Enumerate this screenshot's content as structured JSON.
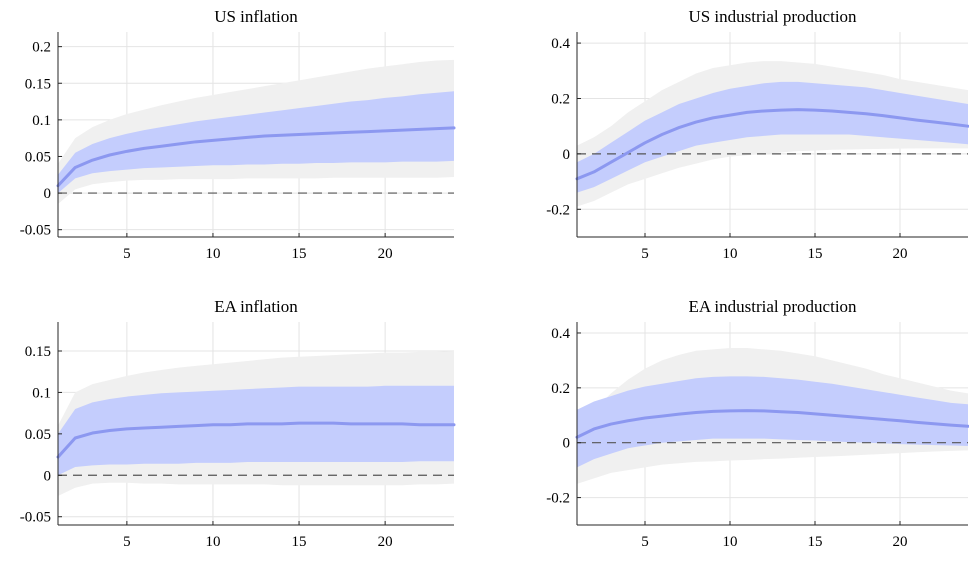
{
  "colors": {
    "outer_band": "#f0f0f0",
    "inner_band": "#c4cdfd",
    "median_line": "#8c98f0",
    "zero_line": "#555555"
  },
  "chart_data": [
    {
      "type": "area",
      "title": "US inflation",
      "xlim": [
        1,
        24
      ],
      "ylim": [
        -0.06,
        0.22
      ],
      "xticks": [
        5,
        10,
        15,
        20
      ],
      "yticks": [
        -0.05,
        0,
        0.05,
        0.1,
        0.15,
        0.2
      ],
      "ytick_labels": [
        "-0.05",
        "0",
        "0.05",
        "0.1",
        "0.15",
        "0.2"
      ],
      "grid": true,
      "zero_line": true,
      "x": [
        1,
        2,
        3,
        4,
        5,
        6,
        7,
        8,
        9,
        10,
        11,
        12,
        13,
        14,
        15,
        16,
        17,
        18,
        19,
        20,
        21,
        22,
        23,
        24
      ],
      "series": [
        {
          "role": "outer_band",
          "lower": [
            -0.015,
            0.005,
            0.012,
            0.015,
            0.017,
            0.018,
            0.018,
            0.019,
            0.019,
            0.019,
            0.019,
            0.02,
            0.02,
            0.02,
            0.02,
            0.02,
            0.021,
            0.021,
            0.021,
            0.021,
            0.021,
            0.021,
            0.021,
            0.022
          ],
          "upper": [
            0.04,
            0.075,
            0.09,
            0.1,
            0.108,
            0.114,
            0.12,
            0.125,
            0.13,
            0.134,
            0.138,
            0.142,
            0.146,
            0.15,
            0.154,
            0.158,
            0.162,
            0.166,
            0.17,
            0.173,
            0.176,
            0.179,
            0.181,
            0.182
          ]
        },
        {
          "role": "inner_band",
          "lower": [
            0.0,
            0.02,
            0.027,
            0.03,
            0.032,
            0.034,
            0.035,
            0.036,
            0.037,
            0.038,
            0.038,
            0.039,
            0.039,
            0.04,
            0.04,
            0.041,
            0.041,
            0.042,
            0.042,
            0.042,
            0.043,
            0.043,
            0.043,
            0.044
          ],
          "upper": [
            0.025,
            0.055,
            0.067,
            0.075,
            0.081,
            0.086,
            0.09,
            0.094,
            0.098,
            0.101,
            0.104,
            0.107,
            0.11,
            0.113,
            0.116,
            0.119,
            0.122,
            0.125,
            0.127,
            0.13,
            0.132,
            0.135,
            0.137,
            0.139
          ]
        },
        {
          "role": "median",
          "values": [
            0.01,
            0.035,
            0.045,
            0.052,
            0.057,
            0.061,
            0.064,
            0.067,
            0.07,
            0.072,
            0.074,
            0.076,
            0.078,
            0.079,
            0.08,
            0.081,
            0.082,
            0.083,
            0.084,
            0.085,
            0.086,
            0.087,
            0.088,
            0.089
          ]
        }
      ]
    },
    {
      "type": "area",
      "title": "US industrial production",
      "xlim": [
        1,
        24
      ],
      "ylim": [
        -0.3,
        0.44
      ],
      "xticks": [
        5,
        10,
        15,
        20
      ],
      "yticks": [
        -0.2,
        0,
        0.2,
        0.4
      ],
      "ytick_labels": [
        "-0.2",
        "0",
        "0.2",
        "0.4"
      ],
      "grid": true,
      "zero_line": true,
      "x": [
        1,
        2,
        3,
        4,
        5,
        6,
        7,
        8,
        9,
        10,
        11,
        12,
        13,
        14,
        15,
        16,
        17,
        18,
        19,
        20,
        21,
        22,
        23,
        24
      ],
      "series": [
        {
          "role": "outer_band",
          "lower": [
            -0.19,
            -0.17,
            -0.14,
            -0.11,
            -0.09,
            -0.07,
            -0.05,
            -0.035,
            -0.02,
            -0.01,
            -0.005,
            0.0,
            0.005,
            0.01,
            0.012,
            0.015,
            0.016,
            0.017,
            0.018,
            0.019,
            0.02,
            0.02,
            0.02,
            0.02
          ],
          "upper": [
            0.03,
            0.06,
            0.1,
            0.15,
            0.19,
            0.23,
            0.26,
            0.29,
            0.31,
            0.32,
            0.33,
            0.335,
            0.335,
            0.33,
            0.325,
            0.315,
            0.305,
            0.295,
            0.285,
            0.27,
            0.26,
            0.25,
            0.24,
            0.23
          ]
        },
        {
          "role": "inner_band",
          "lower": [
            -0.14,
            -0.12,
            -0.09,
            -0.06,
            -0.03,
            -0.01,
            0.01,
            0.03,
            0.04,
            0.05,
            0.06,
            0.065,
            0.07,
            0.07,
            0.07,
            0.07,
            0.07,
            0.065,
            0.06,
            0.055,
            0.05,
            0.045,
            0.04,
            0.035
          ],
          "upper": [
            -0.03,
            0.0,
            0.04,
            0.08,
            0.12,
            0.15,
            0.18,
            0.2,
            0.22,
            0.235,
            0.245,
            0.255,
            0.26,
            0.26,
            0.255,
            0.25,
            0.245,
            0.24,
            0.23,
            0.22,
            0.21,
            0.2,
            0.19,
            0.18
          ]
        },
        {
          "role": "median",
          "values": [
            -0.09,
            -0.065,
            -0.03,
            0.005,
            0.04,
            0.07,
            0.095,
            0.115,
            0.13,
            0.14,
            0.15,
            0.155,
            0.158,
            0.16,
            0.158,
            0.155,
            0.15,
            0.145,
            0.138,
            0.13,
            0.122,
            0.115,
            0.108,
            0.1
          ]
        }
      ]
    },
    {
      "type": "area",
      "title": "EA inflation",
      "xlim": [
        1,
        24
      ],
      "ylim": [
        -0.06,
        0.185
      ],
      "xticks": [
        5,
        10,
        15,
        20
      ],
      "yticks": [
        -0.05,
        0,
        0.05,
        0.1,
        0.15
      ],
      "ytick_labels": [
        "-0.05",
        "0",
        "0.05",
        "0.1",
        "0.15"
      ],
      "grid": true,
      "zero_line": true,
      "x": [
        1,
        2,
        3,
        4,
        5,
        6,
        7,
        8,
        9,
        10,
        11,
        12,
        13,
        14,
        15,
        16,
        17,
        18,
        19,
        20,
        21,
        22,
        23,
        24
      ],
      "series": [
        {
          "role": "outer_band",
          "lower": [
            -0.025,
            -0.015,
            -0.01,
            -0.009,
            -0.009,
            -0.01,
            -0.01,
            -0.011,
            -0.011,
            -0.011,
            -0.011,
            -0.011,
            -0.011,
            -0.012,
            -0.012,
            -0.012,
            -0.012,
            -0.012,
            -0.012,
            -0.012,
            -0.012,
            -0.011,
            -0.011,
            -0.01
          ],
          "upper": [
            0.06,
            0.1,
            0.11,
            0.115,
            0.12,
            0.124,
            0.127,
            0.13,
            0.132,
            0.134,
            0.136,
            0.138,
            0.14,
            0.142,
            0.143,
            0.144,
            0.145,
            0.146,
            0.147,
            0.148,
            0.148,
            0.149,
            0.149,
            0.15
          ]
        },
        {
          "role": "inner_band",
          "lower": [
            0.0,
            0.01,
            0.012,
            0.013,
            0.013,
            0.014,
            0.014,
            0.014,
            0.015,
            0.015,
            0.015,
            0.016,
            0.016,
            0.016,
            0.016,
            0.016,
            0.016,
            0.016,
            0.016,
            0.016,
            0.016,
            0.017,
            0.017,
            0.017
          ],
          "upper": [
            0.05,
            0.08,
            0.088,
            0.092,
            0.095,
            0.097,
            0.099,
            0.1,
            0.101,
            0.102,
            0.103,
            0.104,
            0.105,
            0.106,
            0.107,
            0.107,
            0.107,
            0.107,
            0.107,
            0.108,
            0.108,
            0.108,
            0.108,
            0.108
          ]
        },
        {
          "role": "median",
          "values": [
            0.022,
            0.045,
            0.051,
            0.054,
            0.056,
            0.057,
            0.058,
            0.059,
            0.06,
            0.061,
            0.061,
            0.062,
            0.062,
            0.062,
            0.063,
            0.063,
            0.063,
            0.062,
            0.062,
            0.062,
            0.062,
            0.061,
            0.061,
            0.061
          ]
        }
      ]
    },
    {
      "type": "area",
      "title": "EA industrial production",
      "xlim": [
        1,
        24
      ],
      "ylim": [
        -0.3,
        0.44
      ],
      "xticks": [
        5,
        10,
        15,
        20
      ],
      "yticks": [
        -0.2,
        0,
        0.2,
        0.4
      ],
      "ytick_labels": [
        "-0.2",
        "0",
        "0.2",
        "0.4"
      ],
      "grid": true,
      "zero_line": true,
      "x": [
        1,
        2,
        3,
        4,
        5,
        6,
        7,
        8,
        9,
        10,
        11,
        12,
        13,
        14,
        15,
        16,
        17,
        18,
        19,
        20,
        21,
        22,
        23,
        24
      ],
      "series": [
        {
          "role": "outer_band",
          "lower": [
            -0.15,
            -0.13,
            -0.11,
            -0.1,
            -0.09,
            -0.08,
            -0.075,
            -0.07,
            -0.068,
            -0.065,
            -0.063,
            -0.06,
            -0.058,
            -0.055,
            -0.052,
            -0.05,
            -0.047,
            -0.044,
            -0.041,
            -0.038,
            -0.035,
            -0.032,
            -0.03,
            -0.028
          ],
          "upper": [
            0.06,
            0.12,
            0.18,
            0.23,
            0.27,
            0.3,
            0.32,
            0.335,
            0.34,
            0.345,
            0.345,
            0.34,
            0.335,
            0.325,
            0.315,
            0.3,
            0.285,
            0.27,
            0.25,
            0.235,
            0.22,
            0.205,
            0.19,
            0.18
          ]
        },
        {
          "role": "inner_band",
          "lower": [
            -0.09,
            -0.06,
            -0.04,
            -0.02,
            -0.01,
            0.0,
            0.005,
            0.01,
            0.015,
            0.015,
            0.015,
            0.015,
            0.012,
            0.01,
            0.008,
            0.005,
            0.002,
            0.0,
            -0.002,
            -0.005,
            -0.007,
            -0.009,
            -0.01,
            -0.012
          ],
          "upper": [
            0.12,
            0.15,
            0.17,
            0.19,
            0.205,
            0.215,
            0.225,
            0.235,
            0.24,
            0.242,
            0.242,
            0.24,
            0.235,
            0.23,
            0.222,
            0.215,
            0.205,
            0.195,
            0.185,
            0.175,
            0.165,
            0.155,
            0.145,
            0.14
          ]
        },
        {
          "role": "median",
          "values": [
            0.02,
            0.05,
            0.068,
            0.08,
            0.09,
            0.097,
            0.104,
            0.11,
            0.114,
            0.116,
            0.117,
            0.116,
            0.113,
            0.11,
            0.105,
            0.1,
            0.095,
            0.09,
            0.085,
            0.08,
            0.074,
            0.069,
            0.064,
            0.06
          ]
        }
      ]
    }
  ]
}
